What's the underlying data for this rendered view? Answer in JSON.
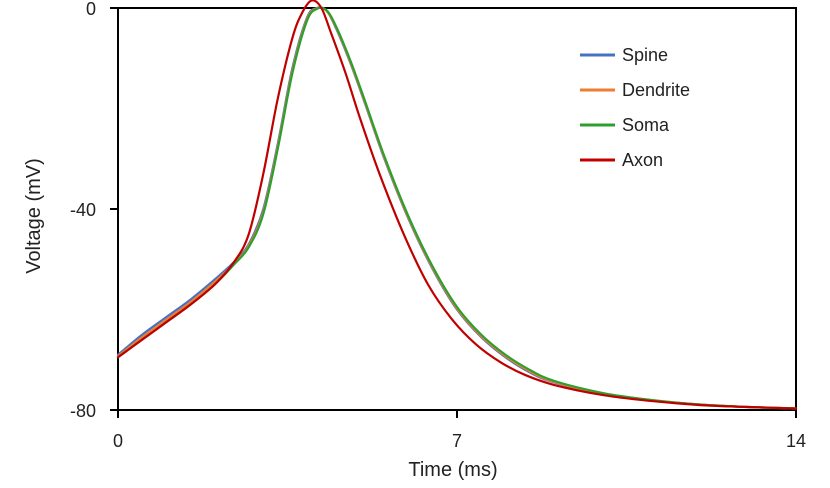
{
  "chart_data": {
    "type": "line",
    "title": "",
    "xlabel": "Time (ms)",
    "ylabel": "Voltage (mV)",
    "xlim": [
      0,
      14
    ],
    "ylim": [
      -80,
      0
    ],
    "xticks": [
      0,
      7,
      14
    ],
    "yticks": [
      0,
      -40,
      -80
    ],
    "xtick_labels": [
      "0",
      "7",
      "14"
    ],
    "ytick_labels": [
      "0",
      "-40",
      "-80"
    ],
    "grid": false,
    "legend_position": "top-right",
    "series": [
      {
        "name": "Spine",
        "color": "#4472c4",
        "x": [
          0,
          0.5,
          1,
          1.5,
          2,
          2.4,
          2.7,
          3.0,
          3.3,
          3.6,
          3.9,
          4.1,
          4.3,
          4.5,
          4.8,
          5.1,
          5.5,
          6.0,
          6.5,
          7.0,
          7.5,
          8.0,
          8.5,
          9.0,
          10.0,
          11.0,
          12.0,
          13.0,
          14.0
        ],
        "y": [
          -69,
          -65,
          -61.5,
          -58,
          -54,
          -50.5,
          -47,
          -40,
          -27,
          -12,
          -2,
          0,
          -0.5,
          -4,
          -11,
          -19,
          -30,
          -42,
          -52,
          -60,
          -65.5,
          -69.5,
          -72.5,
          -74.5,
          -76.8,
          -78.1,
          -78.9,
          -79.4,
          -79.7
        ]
      },
      {
        "name": "Dendrite",
        "color": "#ed7d31",
        "x": [
          0,
          0.5,
          1,
          1.5,
          2,
          2.4,
          2.7,
          3.0,
          3.3,
          3.6,
          3.9,
          4.1,
          4.3,
          4.5,
          4.8,
          5.1,
          5.5,
          6.0,
          6.5,
          7.0,
          7.5,
          8.0,
          8.5,
          9.0,
          10.0,
          11.0,
          12.0,
          13.0,
          14.0
        ],
        "y": [
          -69.3,
          -65.5,
          -62,
          -58.5,
          -54.5,
          -50.8,
          -47.3,
          -40.5,
          -27.5,
          -12.5,
          -2.3,
          -0.1,
          -0.5,
          -3.8,
          -10.8,
          -18.8,
          -29.8,
          -41.8,
          -51.8,
          -59.8,
          -65.3,
          -69.3,
          -72.3,
          -74.4,
          -76.7,
          -78,
          -78.9,
          -79.4,
          -79.7
        ]
      },
      {
        "name": "Soma",
        "color": "#2ca02c",
        "x": [
          0,
          0.5,
          1,
          1.5,
          2,
          2.4,
          2.7,
          3.0,
          3.3,
          3.6,
          3.9,
          4.1,
          4.3,
          4.5,
          4.8,
          5.1,
          5.5,
          6.0,
          6.5,
          7.0,
          7.5,
          8.0,
          8.5,
          9.0,
          10.0,
          11.0,
          12.0,
          13.0,
          14.0
        ],
        "y": [
          -69.5,
          -66,
          -62.5,
          -59,
          -55,
          -51,
          -47.6,
          -41,
          -28,
          -13,
          -2.6,
          -0.2,
          -0.4,
          -3.6,
          -10.5,
          -18.5,
          -29.5,
          -41.5,
          -51.5,
          -59.5,
          -65,
          -69,
          -72,
          -74.2,
          -76.6,
          -78,
          -78.9,
          -79.4,
          -79.7
        ]
      },
      {
        "name": "Axon",
        "color": "#c00000",
        "x": [
          0,
          0.5,
          1,
          1.5,
          2,
          2.4,
          2.7,
          3.0,
          3.3,
          3.6,
          3.8,
          4.0,
          4.2,
          4.4,
          4.7,
          5.0,
          5.4,
          5.9,
          6.4,
          6.9,
          7.4,
          7.9,
          8.4,
          9.0,
          10.0,
          11.0,
          12.0,
          13.0,
          14.0
        ],
        "y": [
          -69.5,
          -66,
          -62.5,
          -59,
          -55,
          -50.5,
          -45,
          -33,
          -18,
          -6,
          -1,
          1.5,
          0,
          -5,
          -13,
          -22,
          -33,
          -45,
          -55,
          -62,
          -67,
          -70.5,
          -73,
          -75,
          -77,
          -78.2,
          -79,
          -79.4,
          -79.7
        ]
      }
    ]
  }
}
